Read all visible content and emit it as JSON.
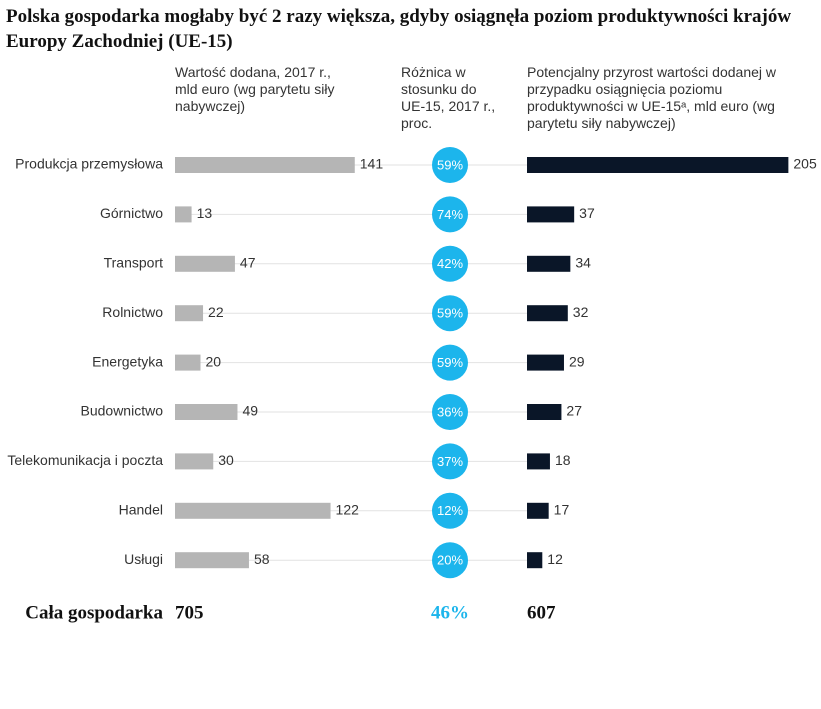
{
  "chart_data": {
    "type": "bar",
    "title": "Polska gospodarka mogłaby być 2 razy większa, gdyby osiągnęła poziom produktywności krajów Europy Zachodniej (UE-15)",
    "categories": [
      "Produkcja przemysłowa",
      "Górnictwo",
      "Transport",
      "Rolnictwo",
      "Energetyka",
      "Budownictwo",
      "Telekomunikacja i poczta",
      "Handel",
      "Usługi"
    ],
    "series": [
      {
        "name": "Wartość dodana, 2017 r., mld euro (wg parytetu siły nabywczej)",
        "color": "#b5b5b5",
        "values": [
          141,
          13,
          47,
          22,
          20,
          49,
          30,
          122,
          58
        ],
        "total": 705
      },
      {
        "name": "Różnica w stosunku do UE-15, 2017 r., proc.",
        "color": "#1cb5ec",
        "values": [
          59,
          74,
          42,
          59,
          59,
          36,
          37,
          12,
          20
        ],
        "value_labels": [
          "59%",
          "74%",
          "42%",
          "59%",
          "59%",
          "36%",
          "37%",
          "12%",
          "20%"
        ],
        "total": 46,
        "total_label": "46%"
      },
      {
        "name": "Potencjalny przyrost wartości dodanej w przypadku osiągnięcia poziomu produktywności w UE-15ᵃ, mld euro (wg parytetu siły nabywczej)",
        "color": "#0a1628",
        "values": [
          205,
          37,
          34,
          32,
          29,
          27,
          18,
          17,
          12
        ],
        "total": 607
      }
    ],
    "total_label": "Cała gospodarka"
  }
}
